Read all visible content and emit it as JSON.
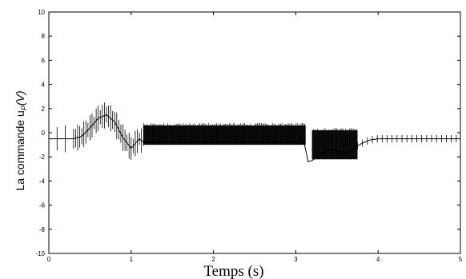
{
  "chart_data": {
    "type": "line",
    "title": "",
    "xlabel": "Temps (s)",
    "ylabel": "La commande u",
    "ylabel_subscript": "P",
    "ylabel_suffix": "(V)",
    "xlim": [
      0,
      5
    ],
    "ylim": [
      -10,
      10
    ],
    "xticks": [
      "0",
      "1",
      "2",
      "3",
      "4",
      "5"
    ],
    "yticks": [
      "10",
      "8",
      "6",
      "4",
      "2",
      "0",
      "-2",
      "-4",
      "-6",
      "-8",
      "-10"
    ],
    "grid": false,
    "series": [
      {
        "name": "",
        "color": "#000000",
        "x": [
          0.0,
          0.1,
          0.2,
          0.3,
          0.4,
          0.5,
          0.6,
          0.7,
          0.8,
          0.9,
          1.0,
          1.1,
          1.15,
          1.5,
          2.0,
          2.5,
          3.0,
          3.1,
          3.15,
          3.2,
          3.3,
          3.4,
          3.5,
          3.6,
          3.7,
          3.8,
          3.9,
          4.0,
          4.2,
          4.5,
          5.0
        ],
        "y": [
          -0.5,
          -0.5,
          -0.5,
          -0.5,
          -0.3,
          0.4,
          1.2,
          1.5,
          0.9,
          -0.4,
          -1.3,
          -0.5,
          -0.8,
          -0.8,
          -0.8,
          -0.8,
          -0.8,
          -0.8,
          -2.4,
          -2.3,
          -1.8,
          -1.4,
          -1.5,
          -1.8,
          -1.3,
          -0.9,
          -0.6,
          -0.5,
          -0.5,
          -0.5,
          -0.5
        ]
      }
    ],
    "switching_bands": [
      {
        "x_start": 1.15,
        "x_end": 3.12,
        "y_low": -1.0,
        "y_high": 0.6
      },
      {
        "x_start": 3.2,
        "x_end": 3.75,
        "y_low": -2.2,
        "y_high": 0.2
      }
    ]
  }
}
